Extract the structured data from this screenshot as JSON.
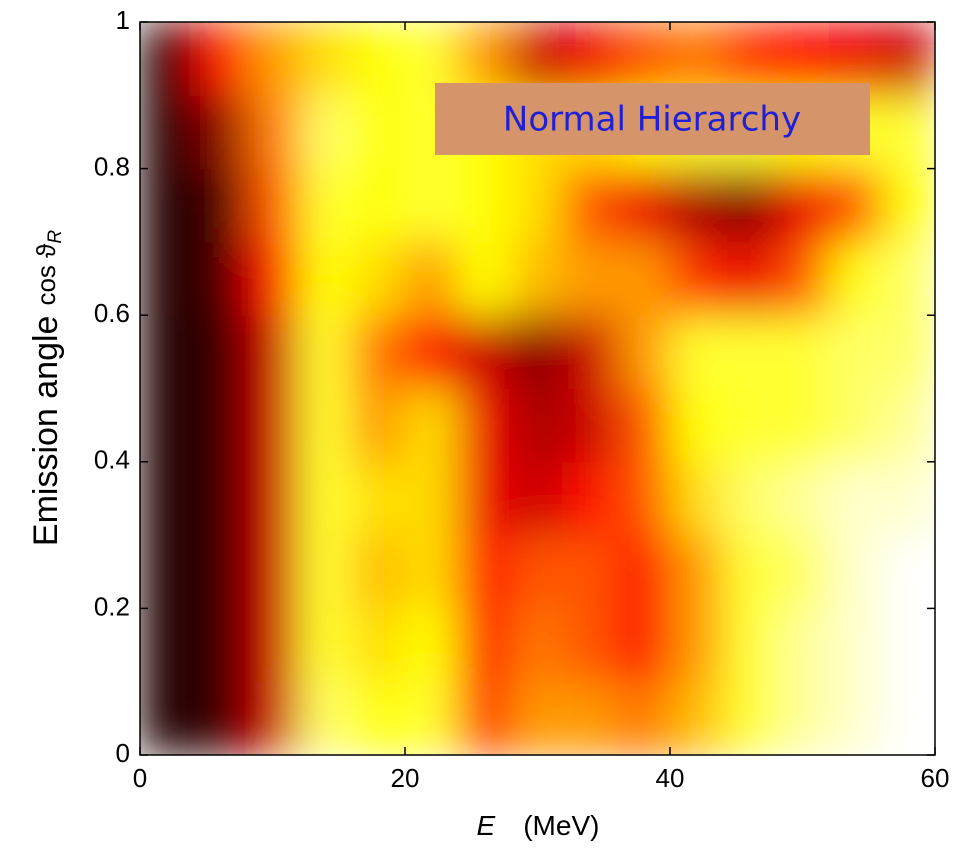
{
  "chart_data": {
    "type": "heatmap",
    "colormap": "hot",
    "xlabel": {
      "symbol": "E",
      "unit": "(MeV)"
    },
    "ylabel": {
      "text": "Emission angle",
      "symbol": "cos ϑ",
      "subscript": "R"
    },
    "annotation": "Normal Hierarchy",
    "xlim": [
      0,
      60
    ],
    "xticks": [
      0,
      20,
      40,
      60
    ],
    "ylim": [
      0,
      1
    ],
    "yticks": [
      0,
      0.2,
      0.4,
      0.6,
      0.8,
      1
    ],
    "x": [
      2,
      6,
      10,
      14,
      18,
      22,
      26,
      30,
      34,
      38,
      42,
      46,
      50,
      54,
      58
    ],
    "y": [
      0.05,
      0.15,
      0.25,
      0.35,
      0.45,
      0.55,
      0.65,
      0.75,
      0.85,
      0.95
    ],
    "z": [
      [
        0.05,
        0.08,
        0.3,
        0.85,
        0.75,
        0.8,
        0.45,
        0.6,
        0.6,
        0.55,
        0.65,
        0.8,
        0.9,
        0.95,
        1
      ],
      [
        0.05,
        0.08,
        0.3,
        0.8,
        0.7,
        0.75,
        0.4,
        0.55,
        0.5,
        0.4,
        0.6,
        0.8,
        0.9,
        0.95,
        1
      ],
      [
        0.05,
        0.08,
        0.3,
        0.8,
        0.65,
        0.7,
        0.4,
        0.5,
        0.5,
        0.4,
        0.6,
        0.8,
        0.85,
        0.95,
        1
      ],
      [
        0.05,
        0.08,
        0.3,
        0.8,
        0.7,
        0.7,
        0.35,
        0.3,
        0.4,
        0.5,
        0.7,
        0.85,
        0.9,
        0.95,
        0.95
      ],
      [
        0.05,
        0.08,
        0.3,
        0.8,
        0.6,
        0.7,
        0.35,
        0.25,
        0.3,
        0.5,
        0.75,
        0.8,
        0.8,
        0.85,
        0.9
      ],
      [
        0.05,
        0.08,
        0.3,
        0.8,
        0.55,
        0.4,
        0.3,
        0.2,
        0.3,
        0.6,
        0.8,
        0.8,
        0.8,
        0.85,
        0.85
      ],
      [
        0.05,
        0.1,
        0.4,
        0.75,
        0.7,
        0.6,
        0.75,
        0.65,
        0.6,
        0.6,
        0.45,
        0.35,
        0.5,
        0.75,
        0.85
      ],
      [
        0.05,
        0.1,
        0.5,
        0.8,
        0.75,
        0.8,
        0.75,
        0.7,
        0.5,
        0.35,
        0.25,
        0.2,
        0.35,
        0.5,
        0.75
      ],
      [
        0.05,
        0.2,
        0.55,
        0.85,
        0.75,
        0.8,
        0.75,
        0.7,
        0.7,
        0.75,
        0.8,
        0.8,
        0.75,
        0.8,
        0.8
      ],
      [
        0.05,
        0.4,
        0.6,
        0.7,
        0.75,
        0.8,
        0.6,
        0.3,
        0.35,
        0.5,
        0.55,
        0.45,
        0.4,
        0.35,
        0.3
      ]
    ]
  }
}
